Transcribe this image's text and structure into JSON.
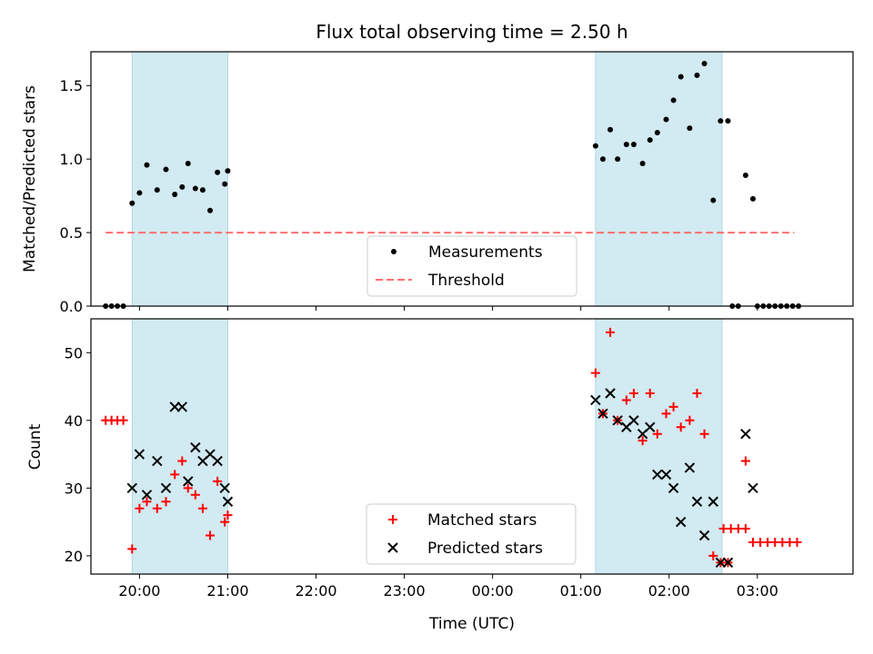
{
  "title": "Flux total observing time = 2.50 h",
  "chart_data": [
    {
      "type": "scatter",
      "name": "top",
      "ylabel": "Matched/Predicted stars",
      "xlabel": "",
      "xlim": [
        "19:27",
        "04:05"
      ],
      "ylim": [
        0,
        1.73
      ],
      "yticks": [
        0.0,
        0.5,
        1.0,
        1.5
      ],
      "ytick_labels": [
        "0.0",
        "0.5",
        "1.0",
        "1.5"
      ],
      "shaded_regions": [
        [
          "19:55",
          "21:00"
        ],
        [
          "01:10",
          "02:36"
        ]
      ],
      "shade_color": "#add8e6",
      "threshold": {
        "label": "Threshold",
        "value": 0.5,
        "x_start": "19:37",
        "x_end": "03:25",
        "color": "#ff6f6f"
      },
      "legend": {
        "position": "lower-center",
        "entries": [
          {
            "label": "Measurements",
            "marker": "dot"
          },
          {
            "label": "Threshold",
            "marker": "dashed"
          }
        ]
      },
      "series": [
        {
          "label": "Measurements",
          "color": "#000000",
          "marker": "dot",
          "points": [
            [
              "19:37",
              0.0
            ],
            [
              "19:41",
              0.0
            ],
            [
              "19:45",
              0.0
            ],
            [
              "19:49",
              0.0
            ],
            [
              "19:55",
              0.7
            ],
            [
              "20:00",
              0.77
            ],
            [
              "20:05",
              0.96
            ],
            [
              "20:12",
              0.79
            ],
            [
              "20:18",
              0.93
            ],
            [
              "20:24",
              0.76
            ],
            [
              "20:29",
              0.81
            ],
            [
              "20:33",
              0.97
            ],
            [
              "20:38",
              0.8
            ],
            [
              "20:43",
              0.79
            ],
            [
              "20:48",
              0.65
            ],
            [
              "20:53",
              0.91
            ],
            [
              "20:58",
              0.83
            ],
            [
              "21:00",
              0.92
            ],
            [
              "01:10",
              1.09
            ],
            [
              "01:15",
              1.0
            ],
            [
              "01:20",
              1.2
            ],
            [
              "01:25",
              1.0
            ],
            [
              "01:31",
              1.1
            ],
            [
              "01:36",
              1.1
            ],
            [
              "01:42",
              0.97
            ],
            [
              "01:47",
              1.13
            ],
            [
              "01:52",
              1.18
            ],
            [
              "01:58",
              1.27
            ],
            [
              "02:03",
              1.4
            ],
            [
              "02:08",
              1.56
            ],
            [
              "02:14",
              1.21
            ],
            [
              "02:19",
              1.57
            ],
            [
              "02:24",
              1.65
            ],
            [
              "02:30",
              0.72
            ],
            [
              "02:35",
              1.26
            ],
            [
              "02:40",
              1.26
            ],
            [
              "02:43",
              0.0
            ],
            [
              "02:47",
              0.0
            ],
            [
              "02:52",
              0.89
            ],
            [
              "02:57",
              0.73
            ],
            [
              "03:00",
              0.0
            ],
            [
              "03:04",
              0.0
            ],
            [
              "03:08",
              0.0
            ],
            [
              "03:12",
              0.0
            ],
            [
              "03:16",
              0.0
            ],
            [
              "03:20",
              0.0
            ],
            [
              "03:24",
              0.0
            ],
            [
              "03:28",
              0.0
            ]
          ]
        }
      ]
    },
    {
      "type": "scatter",
      "name": "bottom",
      "ylabel": "Count",
      "xlabel": "Time (UTC)",
      "xlim": [
        "19:27",
        "04:05"
      ],
      "ylim": [
        17.3,
        55
      ],
      "yticks": [
        20,
        30,
        40,
        50
      ],
      "ytick_labels": [
        "20",
        "30",
        "40",
        "50"
      ],
      "xticks": [
        "20:00",
        "21:00",
        "22:00",
        "23:00",
        "00:00",
        "01:00",
        "02:00",
        "03:00"
      ],
      "xtick_labels": [
        "20:00",
        "21:00",
        "22:00",
        "23:00",
        "00:00",
        "01:00",
        "02:00",
        "03:00"
      ],
      "shaded_regions": [
        [
          "19:55",
          "21:00"
        ],
        [
          "01:10",
          "02:36"
        ]
      ],
      "shade_color": "#add8e6",
      "legend": {
        "position": "lower-center",
        "entries": [
          {
            "label": "Matched stars",
            "marker": "plus",
            "color": "#ff0000"
          },
          {
            "label": "Predicted stars",
            "marker": "x",
            "color": "#000000"
          }
        ]
      },
      "series": [
        {
          "label": "Matched stars",
          "color": "#ff0000",
          "marker": "plus",
          "points": [
            [
              "19:37",
              40
            ],
            [
              "19:41",
              40
            ],
            [
              "19:45",
              40
            ],
            [
              "19:49",
              40
            ],
            [
              "19:55",
              21
            ],
            [
              "20:00",
              27
            ],
            [
              "20:05",
              28
            ],
            [
              "20:12",
              27
            ],
            [
              "20:18",
              28
            ],
            [
              "20:24",
              32
            ],
            [
              "20:29",
              34
            ],
            [
              "20:33",
              30
            ],
            [
              "20:38",
              29
            ],
            [
              "20:43",
              27
            ],
            [
              "20:48",
              23
            ],
            [
              "20:53",
              31
            ],
            [
              "20:58",
              25
            ],
            [
              "21:00",
              26
            ],
            [
              "01:10",
              47
            ],
            [
              "01:15",
              41
            ],
            [
              "01:20",
              53
            ],
            [
              "01:25",
              40
            ],
            [
              "01:31",
              43
            ],
            [
              "01:36",
              44
            ],
            [
              "01:42",
              37
            ],
            [
              "01:47",
              44
            ],
            [
              "01:52",
              38
            ],
            [
              "01:58",
              41
            ],
            [
              "02:03",
              42
            ],
            [
              "02:08",
              39
            ],
            [
              "02:14",
              40
            ],
            [
              "02:19",
              44
            ],
            [
              "02:24",
              38
            ],
            [
              "02:30",
              20
            ],
            [
              "02:35",
              19
            ],
            [
              "02:40",
              19
            ],
            [
              "02:37",
              24
            ],
            [
              "02:42",
              24
            ],
            [
              "02:47",
              24
            ],
            [
              "02:52",
              24
            ],
            [
              "02:52",
              34
            ],
            [
              "02:57",
              22
            ],
            [
              "03:02",
              22
            ],
            [
              "03:07",
              22
            ],
            [
              "03:12",
              22
            ],
            [
              "03:17",
              22
            ],
            [
              "03:22",
              22
            ],
            [
              "03:27",
              22
            ]
          ]
        },
        {
          "label": "Predicted stars",
          "color": "#000000",
          "marker": "x",
          "points": [
            [
              "19:55",
              30
            ],
            [
              "20:00",
              35
            ],
            [
              "20:05",
              29
            ],
            [
              "20:12",
              34
            ],
            [
              "20:18",
              30
            ],
            [
              "20:24",
              42
            ],
            [
              "20:29",
              42
            ],
            [
              "20:33",
              31
            ],
            [
              "20:38",
              36
            ],
            [
              "20:43",
              34
            ],
            [
              "20:48",
              35
            ],
            [
              "20:53",
              34
            ],
            [
              "20:58",
              30
            ],
            [
              "21:00",
              28
            ],
            [
              "01:10",
              43
            ],
            [
              "01:15",
              41
            ],
            [
              "01:20",
              44
            ],
            [
              "01:25",
              40
            ],
            [
              "01:31",
              39
            ],
            [
              "01:36",
              40
            ],
            [
              "01:42",
              38
            ],
            [
              "01:47",
              39
            ],
            [
              "01:52",
              32
            ],
            [
              "01:58",
              32
            ],
            [
              "02:03",
              30
            ],
            [
              "02:08",
              25
            ],
            [
              "02:14",
              33
            ],
            [
              "02:19",
              28
            ],
            [
              "02:24",
              23
            ],
            [
              "02:30",
              28
            ],
            [
              "02:35",
              19
            ],
            [
              "02:40",
              19
            ],
            [
              "02:52",
              38
            ],
            [
              "02:57",
              30
            ]
          ]
        }
      ]
    }
  ]
}
